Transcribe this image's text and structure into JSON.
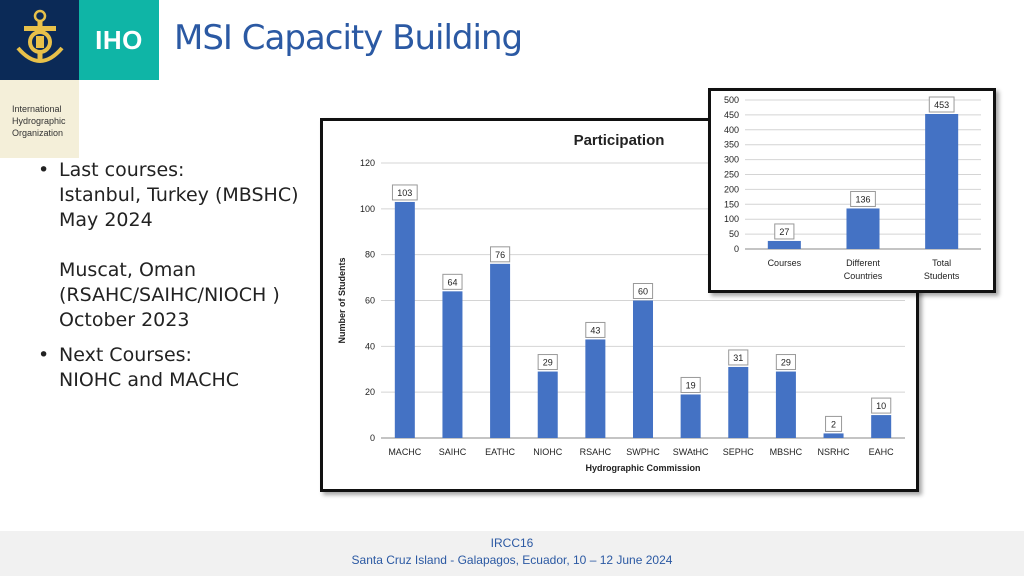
{
  "header": {
    "logo_text": "IHO",
    "org_name": [
      "International",
      "Hydrographic",
      "Organization"
    ],
    "title": "MSI Capacity Building"
  },
  "bullets": {
    "b1_lines": [
      "Last courses:",
      "Istanbul, Turkey (MBSHC)",
      "May 2024"
    ],
    "b1b_lines": [
      "Muscat, Oman",
      "(RSAHC/SAIHC/NIOCH )",
      "October 2023"
    ],
    "b2_lines": [
      "Next Courses:",
      "NIOHC and MACHC"
    ]
  },
  "footer": {
    "line1": "IRCC16",
    "line2": "Santa Cruz Island - Galapagos, Ecuador, 10 – 12 June 2024"
  },
  "colors": {
    "bar": "#4472c4",
    "title": "#2b59a3"
  },
  "chart_data": [
    {
      "type": "bar",
      "title": "Participation",
      "xlabel": "Hydrographic Commission",
      "ylabel": "Number of Students",
      "categories": [
        "MACHC",
        "SAIHC",
        "EATHC",
        "NIOHC",
        "RSAHC",
        "SWPHC",
        "SWAtHC",
        "SEPHC",
        "MBSHC",
        "NSRHC",
        "EAHC"
      ],
      "values": [
        103,
        64,
        76,
        29,
        43,
        60,
        19,
        31,
        29,
        2,
        10
      ],
      "ylim": [
        0,
        120
      ],
      "yticks": [
        0,
        20,
        40,
        60,
        80,
        100,
        120
      ],
      "grid": true,
      "data_labels": true
    },
    {
      "type": "bar",
      "categories": [
        "Courses",
        "Different Countries",
        "Total Students"
      ],
      "values": [
        27,
        136,
        453
      ],
      "ylim": [
        0,
        500
      ],
      "yticks": [
        0,
        50,
        100,
        150,
        200,
        250,
        300,
        350,
        400,
        450,
        500
      ],
      "grid": true,
      "data_labels": true
    }
  ]
}
